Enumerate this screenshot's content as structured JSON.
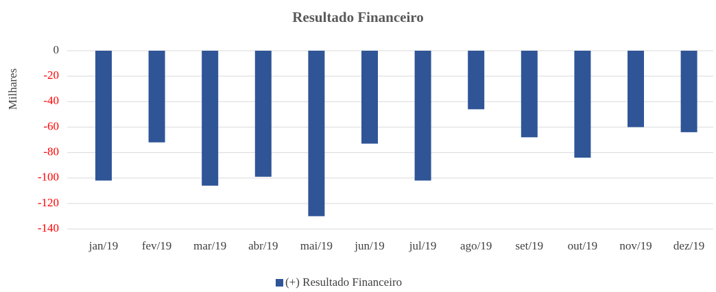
{
  "chart_data": {
    "type": "bar",
    "title": "Resultado Financeiro",
    "y_label": "Milhares",
    "categories": [
      "jan/19",
      "fev/19",
      "mar/19",
      "abr/19",
      "mai/19",
      "jun/19",
      "jul/19",
      "ago/19",
      "set/19",
      "out/19",
      "nov/19",
      "dez/19"
    ],
    "series": [
      {
        "name": "(+) Resultado Financeiro",
        "color": "#2f5597",
        "values": [
          -102,
          -72,
          -106,
          -99,
          -130,
          -73,
          -102,
          -46,
          -68,
          -84,
          -60,
          -64
        ]
      }
    ],
    "ylim": [
      -140,
      0
    ],
    "yticks": [
      0,
      -20,
      -40,
      -60,
      -80,
      -100,
      -120,
      -140
    ],
    "grid": true,
    "tick_color": "#404040",
    "negative_tick_color": "#ff0000",
    "legend": "bottom"
  }
}
